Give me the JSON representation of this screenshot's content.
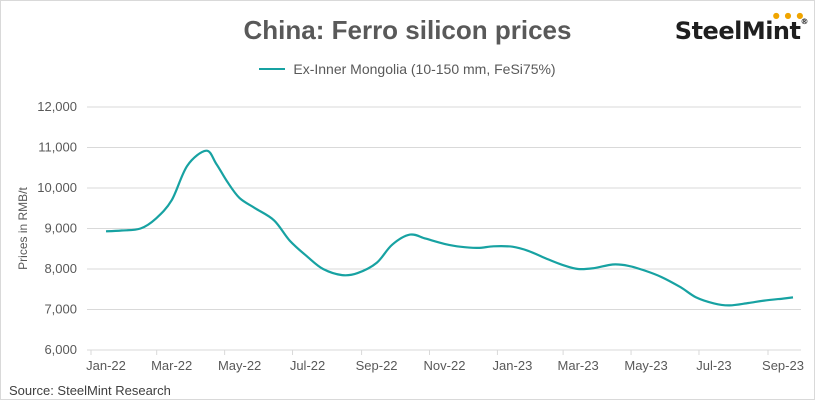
{
  "logo": {
    "text": "SteelMint"
  },
  "source": "Source:  SteelMint  Research",
  "colors": {
    "series": "#17a2a2",
    "grid": "#d9d9d9",
    "text": "#595959"
  },
  "chart_data": {
    "type": "line",
    "title": "China: Ferro silicon prices",
    "ylabel": "Prices in RMB/t",
    "xlabel": "",
    "ylim": [
      6000,
      12000
    ],
    "y_ticks": [
      6000,
      7000,
      8000,
      9000,
      10000,
      11000,
      12000
    ],
    "y_tick_labels": [
      "6,000",
      "7,000",
      "8,000",
      "9,000",
      "10,000",
      "11,000",
      "12,000"
    ],
    "x_tick_labels": [
      "Jan-22",
      "Mar-22",
      "May-22",
      "Jul-22",
      "Sep-22",
      "Nov-22",
      "Jan-23",
      "Mar-23",
      "May-23",
      "Jul-23",
      "Sep-23"
    ],
    "grid": true,
    "legend_position": "top-center",
    "series": [
      {
        "name": "Ex-Inner Mongolia (10-150 mm, FeSi75%)",
        "x": [
          "2022-01-01",
          "2022-01-15",
          "2022-02-01",
          "2022-02-15",
          "2022-03-01",
          "2022-03-15",
          "2022-04-01",
          "2022-04-10",
          "2022-04-20",
          "2022-05-01",
          "2022-05-15",
          "2022-06-01",
          "2022-06-15",
          "2022-07-01",
          "2022-07-15",
          "2022-08-01",
          "2022-08-15",
          "2022-09-01",
          "2022-09-15",
          "2022-10-01",
          "2022-10-15",
          "2022-11-01",
          "2022-11-15",
          "2022-12-01",
          "2022-12-15",
          "2023-01-01",
          "2023-01-15",
          "2023-02-01",
          "2023-02-15",
          "2023-03-01",
          "2023-03-15",
          "2023-04-01",
          "2023-04-15",
          "2023-05-01",
          "2023-05-15",
          "2023-06-01",
          "2023-06-15",
          "2023-07-01",
          "2023-07-15",
          "2023-08-01",
          "2023-08-15",
          "2023-09-01",
          "2023-09-10"
        ],
        "y": [
          8930,
          8950,
          9000,
          9250,
          9700,
          10550,
          10920,
          10600,
          10150,
          9750,
          9500,
          9200,
          8700,
          8300,
          8000,
          7850,
          7900,
          8150,
          8600,
          8850,
          8750,
          8620,
          8550,
          8520,
          8560,
          8550,
          8450,
          8250,
          8100,
          8000,
          8020,
          8110,
          8080,
          7950,
          7800,
          7550,
          7300,
          7150,
          7100,
          7160,
          7220,
          7270,
          7300
        ]
      }
    ]
  }
}
